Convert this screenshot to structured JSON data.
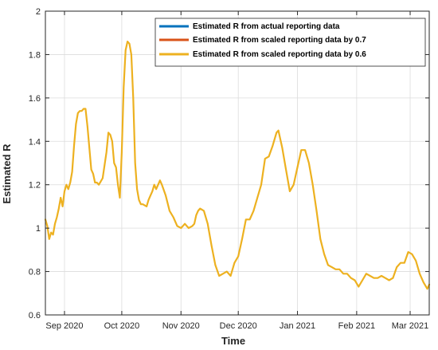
{
  "chart_data": {
    "type": "line",
    "xlabel": "Time",
    "ylabel": "Estimated R",
    "ylim": [
      0.6,
      2.0
    ],
    "yticks": [
      0.6,
      0.8,
      1,
      1.2,
      1.4,
      1.6,
      1.8,
      2
    ],
    "ytick_labels": [
      "0.6",
      "0.8",
      "1",
      "1.2",
      "1.4",
      "1.6",
      "1.8",
      "2"
    ],
    "xlim": [
      "2020-08-22",
      "2021-03-11"
    ],
    "xticks": [
      "2020-09-01",
      "2020-10-01",
      "2020-11-01",
      "2020-12-01",
      "2021-01-01",
      "2021-02-01",
      "2021-03-01"
    ],
    "xtick_labels": [
      "Sep 2020",
      "Oct 2020",
      "Nov 2020",
      "Dec 2020",
      "Jan 2021",
      "Feb 2021",
      "Mar 2021"
    ],
    "grid": true,
    "legend_position": "top-right",
    "series": [
      {
        "name": "Estimated R from actual reporting data",
        "color": "#0072BD",
        "x": [],
        "y": []
      },
      {
        "name": "Estimated R from scaled reporting data by 0.7",
        "color": "#D95319",
        "x": [],
        "y": []
      },
      {
        "name": "Estimated R from scaled reporting data by 0.6",
        "color": "#EDB120",
        "x": [
          "2020-08-22",
          "2020-08-23",
          "2020-08-24",
          "2020-08-25",
          "2020-08-26",
          "2020-08-27",
          "2020-08-28",
          "2020-08-29",
          "2020-08-30",
          "2020-08-31",
          "2020-09-01",
          "2020-09-02",
          "2020-09-03",
          "2020-09-04",
          "2020-09-05",
          "2020-09-06",
          "2020-09-07",
          "2020-09-08",
          "2020-09-09",
          "2020-09-10",
          "2020-09-11",
          "2020-09-12",
          "2020-09-13",
          "2020-09-15",
          "2020-09-16",
          "2020-09-17",
          "2020-09-18",
          "2020-09-19",
          "2020-09-21",
          "2020-09-22",
          "2020-09-23",
          "2020-09-24",
          "2020-09-25",
          "2020-09-26",
          "2020-09-27",
          "2020-09-28",
          "2020-09-29",
          "2020-09-30",
          "2020-10-01",
          "2020-10-02",
          "2020-10-03",
          "2020-10-04",
          "2020-10-05",
          "2020-10-06",
          "2020-10-07",
          "2020-10-08",
          "2020-10-09",
          "2020-10-10",
          "2020-10-11",
          "2020-10-12",
          "2020-10-14",
          "2020-10-15",
          "2020-10-16",
          "2020-10-17",
          "2020-10-18",
          "2020-10-19",
          "2020-10-21",
          "2020-10-22",
          "2020-10-24",
          "2020-10-26",
          "2020-10-28",
          "2020-10-30",
          "2020-11-01",
          "2020-11-03",
          "2020-11-05",
          "2020-11-07",
          "2020-11-08",
          "2020-11-09",
          "2020-11-10",
          "2020-11-11",
          "2020-11-13",
          "2020-11-15",
          "2020-11-17",
          "2020-11-19",
          "2020-11-21",
          "2020-11-23",
          "2020-11-25",
          "2020-11-27",
          "2020-11-29",
          "2020-12-01",
          "2020-12-03",
          "2020-12-05",
          "2020-12-07",
          "2020-12-09",
          "2020-12-11",
          "2020-12-13",
          "2020-12-15",
          "2020-12-17",
          "2020-12-19",
          "2020-12-21",
          "2020-12-22",
          "2020-12-23",
          "2020-12-24",
          "2020-12-26",
          "2020-12-28",
          "2020-12-30",
          "2021-01-01",
          "2021-01-03",
          "2021-01-05",
          "2021-01-07",
          "2021-01-09",
          "2021-01-11",
          "2021-01-13",
          "2021-01-15",
          "2021-01-17",
          "2021-01-19",
          "2021-01-21",
          "2021-01-23",
          "2021-01-25",
          "2021-01-27",
          "2021-01-29",
          "2021-01-31",
          "2021-02-02",
          "2021-02-04",
          "2021-02-06",
          "2021-02-08",
          "2021-02-10",
          "2021-02-12",
          "2021-02-14",
          "2021-02-16",
          "2021-02-18",
          "2021-02-20",
          "2021-02-22",
          "2021-02-24",
          "2021-02-26",
          "2021-02-28",
          "2021-03-02",
          "2021-03-04",
          "2021-03-06",
          "2021-03-08",
          "2021-03-10",
          "2021-03-11"
        ],
        "y": [
          1.04,
          1.01,
          0.95,
          0.98,
          0.97,
          1.02,
          1.05,
          1.09,
          1.14,
          1.1,
          1.17,
          1.2,
          1.18,
          1.21,
          1.26,
          1.38,
          1.48,
          1.53,
          1.54,
          1.54,
          1.55,
          1.55,
          1.47,
          1.27,
          1.25,
          1.21,
          1.21,
          1.2,
          1.23,
          1.29,
          1.35,
          1.44,
          1.43,
          1.4,
          1.3,
          1.28,
          1.2,
          1.14,
          1.35,
          1.65,
          1.82,
          1.86,
          1.85,
          1.8,
          1.6,
          1.3,
          1.18,
          1.13,
          1.11,
          1.11,
          1.1,
          1.13,
          1.15,
          1.17,
          1.2,
          1.18,
          1.22,
          1.2,
          1.15,
          1.08,
          1.05,
          1.01,
          1.0,
          1.02,
          1.0,
          1.01,
          1.02,
          1.06,
          1.08,
          1.09,
          1.08,
          1.02,
          0.92,
          0.83,
          0.78,
          0.79,
          0.8,
          0.78,
          0.84,
          0.87,
          0.95,
          1.04,
          1.04,
          1.08,
          1.14,
          1.2,
          1.32,
          1.33,
          1.38,
          1.44,
          1.45,
          1.41,
          1.37,
          1.27,
          1.17,
          1.2,
          1.28,
          1.36,
          1.36,
          1.3,
          1.2,
          1.08,
          0.95,
          0.88,
          0.83,
          0.82,
          0.81,
          0.81,
          0.79,
          0.79,
          0.77,
          0.76,
          0.73,
          0.76,
          0.79,
          0.78,
          0.77,
          0.77,
          0.78,
          0.77,
          0.76,
          0.77,
          0.82,
          0.84,
          0.84,
          0.89,
          0.88,
          0.85,
          0.79,
          0.75,
          0.72,
          0.74
        ]
      }
    ]
  }
}
